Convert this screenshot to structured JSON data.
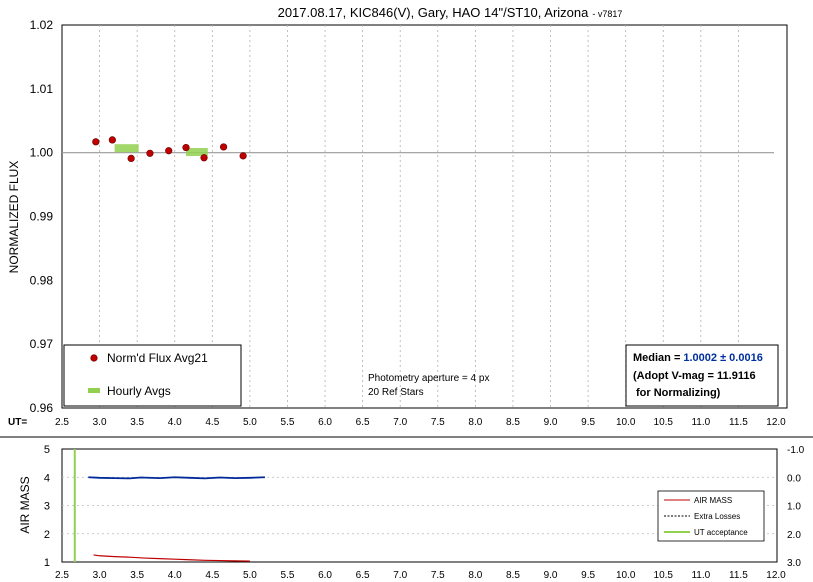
{
  "chart_data": [
    {
      "type": "scatter",
      "title": "2017.08.17, KIC846(V), Gary, HAO 14\"/ST10, Arizona",
      "title_suffix": "- v7817",
      "ylabel": "NORMALIZED FLUX",
      "xlabel_prefix": "UT=",
      "xlim": [
        2.5,
        12.0
      ],
      "ylim": [
        0.96,
        1.02
      ],
      "x_ticks": [
        "2.5",
        "3.0",
        "3.5",
        "4.0",
        "4.5",
        "5.0",
        "5.5",
        "6.0",
        "6.5",
        "7.0",
        "7.5",
        "8.0",
        "8.5",
        "9.0",
        "9.5",
        "10.0",
        "10.5",
        "11.0",
        "11.5",
        "12.0"
      ],
      "y_ticks": [
        "1.02",
        "1.01",
        "1.00",
        "0.99",
        "0.98",
        "0.97",
        "0.96"
      ],
      "reference_line": 1.0,
      "series": [
        {
          "name": "Norm'd Flux Avg21",
          "color": "#c00000",
          "x": [
            2.95,
            3.17,
            3.42,
            3.67,
            3.92,
            4.15,
            4.39,
            4.65,
            4.91
          ],
          "y": [
            1.0017,
            1.002,
            0.9991,
            0.9999,
            1.0003,
            1.0008,
            0.9992,
            1.0009,
            0.9995
          ]
        },
        {
          "name": "Hourly Avgs",
          "color": "#92d050",
          "segments": [
            {
              "x_start": 3.2,
              "x_end": 3.52,
              "y": 1.0007
            },
            {
              "x_start": 4.15,
              "x_end": 4.44,
              "y": 1.0001
            }
          ]
        }
      ],
      "annotations": {
        "aperture": "Photometry aperture = 4 px",
        "ref_stars": "20 Ref Stars"
      },
      "median_box": {
        "label": "Median =",
        "value": "1.0002 ± 0.0016",
        "value_color": "#0030a0",
        "line2": "(Adopt V-mag = 11.9116",
        "line3": "for Normalizing)"
      }
    },
    {
      "type": "line",
      "ylabel": "AIR MASS",
      "xlim": [
        2.5,
        12.0
      ],
      "ylim": [
        1,
        5
      ],
      "y2lim": [
        -1.0,
        3.0
      ],
      "x_ticks": [
        "2.5",
        "3.0",
        "3.5",
        "4.0",
        "4.5",
        "5.0",
        "5.5",
        "6.0",
        "6.5",
        "7.0",
        "7.5",
        "8.0",
        "8.5",
        "9.0",
        "9.5",
        "10.0",
        "10.5",
        "11.0",
        "11.5",
        "12.0"
      ],
      "y_ticks": [
        "5",
        "4",
        "3",
        "2",
        "1"
      ],
      "y2_ticks": [
        "-1.0",
        "0.0",
        "1.0",
        "2.0",
        "3.0"
      ],
      "series": [
        {
          "name": "AIR MASS",
          "color": "#c00000",
          "x": [
            2.92,
            3.0,
            3.2,
            3.4,
            3.6,
            3.8,
            4.0,
            4.2,
            4.4,
            4.6,
            4.8,
            5.0
          ],
          "y": [
            1.25,
            1.22,
            1.19,
            1.17,
            1.14,
            1.12,
            1.1,
            1.08,
            1.06,
            1.05,
            1.04,
            1.03
          ]
        },
        {
          "name": "Extra Losses",
          "color": "#002a9a",
          "x": [
            2.85,
            3.0,
            3.2,
            3.4,
            3.55,
            3.8,
            4.0,
            4.2,
            4.4,
            4.6,
            4.8,
            5.0,
            5.2
          ],
          "y2": [
            0.0,
            0.02,
            0.03,
            0.04,
            0.01,
            0.03,
            0.0,
            0.02,
            0.04,
            0.01,
            0.03,
            0.02,
            0.0
          ]
        },
        {
          "name": "UT acceptance",
          "color": "#92d050",
          "x": [
            2.67,
            2.67
          ],
          "y": [
            1,
            5
          ]
        }
      ],
      "legend_position": "bottom-right"
    }
  ]
}
